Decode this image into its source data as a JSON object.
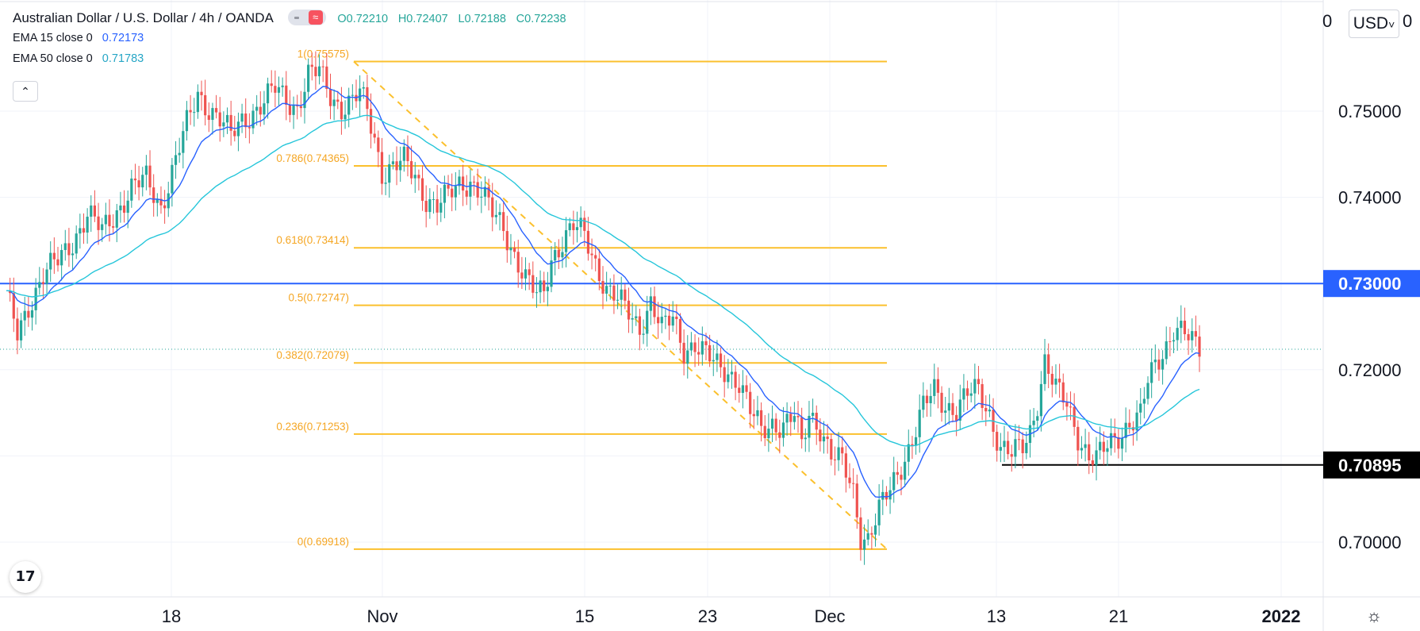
{
  "header": {
    "symbol": "Australian Dollar / U.S. Dollar",
    "interval": "4h",
    "exchange": "OANDA",
    "open": "O0.72210",
    "high": "H0.72407",
    "low": "L0.72188",
    "close": "C0.72238",
    "ema1_label": "EMA 15 close 0",
    "ema1_value": "0.72173",
    "ema2_label": "EMA 50 close 0",
    "ema2_value": "0.71783",
    "collapse_icon": "chevron-up-icon",
    "separator": "·"
  },
  "currency_selector": "USD",
  "colors": {
    "up": "#26a69a",
    "down": "#ef5350",
    "ema15": "#2962ff",
    "ema50": "#26c6da",
    "fib": "#fbc02d",
    "level_line": "#2962ff",
    "axis_text": "#131722"
  },
  "chart_data": {
    "type": "candlestick",
    "y_axis_ticks": [
      "0.75000",
      "0.74000",
      "0.72000",
      "0.70000"
    ],
    "ylim": [
      0.6935,
      0.7634
    ],
    "x_axis_ticks": [
      "18",
      "Nov",
      "15",
      "23",
      "Dec",
      "13",
      "21",
      "2022"
    ],
    "price_labels": [
      {
        "text": "0.73000",
        "value": 0.73,
        "style": "blue"
      },
      {
        "text": "0.70895",
        "value": 0.70895,
        "style": "black"
      }
    ],
    "horizontal_lines": [
      {
        "value": 0.73,
        "color": "#2962ff",
        "span": "full"
      },
      {
        "value": 0.70895,
        "color": "#000000",
        "span": "right"
      }
    ],
    "current_price": 0.72238,
    "fibonacci": [
      {
        "label": "1(0.75575)",
        "value": 0.75575
      },
      {
        "label": "0.786(0.74365)",
        "value": 0.74365
      },
      {
        "label": "0.618(0.73414)",
        "value": 0.73414
      },
      {
        "label": "0.5(0.72747)",
        "value": 0.72747
      },
      {
        "label": "0.382(0.72079)",
        "value": 0.72079
      },
      {
        "label": "0.236(0.71253)",
        "value": 0.71253
      },
      {
        "label": "0(0.69918)",
        "value": 0.69918
      }
    ],
    "series_points": {
      "close_path": [
        [
          0,
          0.7285
        ],
        [
          3,
          0.724
        ],
        [
          6,
          0.7275
        ],
        [
          10,
          0.731
        ],
        [
          14,
          0.7325
        ],
        [
          18,
          0.735
        ],
        [
          22,
          0.738
        ],
        [
          26,
          0.736
        ],
        [
          30,
          0.7385
        ],
        [
          34,
          0.741
        ],
        [
          38,
          0.742
        ],
        [
          42,
          0.739
        ],
        [
          45,
          0.743
        ],
        [
          48,
          0.747
        ],
        [
          52,
          0.752
        ],
        [
          55,
          0.7505
        ],
        [
          58,
          0.749
        ],
        [
          61,
          0.747
        ],
        [
          64,
          0.749
        ],
        [
          67,
          0.75
        ],
        [
          70,
          0.751
        ],
        [
          73,
          0.7525
        ],
        [
          76,
          0.7515
        ],
        [
          79,
          0.7505
        ],
        [
          82,
          0.754
        ],
        [
          85,
          0.7545
        ],
        [
          88,
          0.752
        ],
        [
          91,
          0.7505
        ],
        [
          94,
          0.751
        ],
        [
          96,
          0.752
        ],
        [
          98,
          0.75
        ],
        [
          100,
          0.747
        ],
        [
          102,
          0.743
        ],
        [
          105,
          0.7435
        ],
        [
          108,
          0.744
        ],
        [
          111,
          0.7425
        ],
        [
          114,
          0.74
        ],
        [
          117,
          0.739
        ],
        [
          120,
          0.74
        ],
        [
          123,
          0.7415
        ],
        [
          126,
          0.742
        ],
        [
          129,
          0.7405
        ],
        [
          132,
          0.738
        ],
        [
          135,
          0.7365
        ],
        [
          138,
          0.7335
        ],
        [
          141,
          0.7305
        ],
        [
          144,
          0.7285
        ],
        [
          146,
          0.729
        ],
        [
          148,
          0.733
        ],
        [
          151,
          0.735
        ],
        [
          154,
          0.7365
        ],
        [
          157,
          0.7355
        ],
        [
          160,
          0.7325
        ],
        [
          163,
          0.7295
        ],
        [
          166,
          0.728
        ],
        [
          169,
          0.7265
        ],
        [
          172,
          0.725
        ],
        [
          175,
          0.728
        ],
        [
          178,
          0.7245
        ],
        [
          181,
          0.726
        ],
        [
          184,
          0.7225
        ],
        [
          187,
          0.723
        ],
        [
          190,
          0.7215
        ],
        [
          193,
          0.7205
        ],
        [
          196,
          0.72
        ],
        [
          199,
          0.7185
        ],
        [
          202,
          0.715
        ],
        [
          205,
          0.713
        ],
        [
          208,
          0.714
        ],
        [
          211,
          0.7135
        ],
        [
          214,
          0.7145
        ],
        [
          216,
          0.711
        ],
        [
          218,
          0.715
        ],
        [
          221,
          0.7135
        ],
        [
          224,
          0.71
        ],
        [
          227,
          0.709
        ],
        [
          230,
          0.706
        ],
        [
          232,
          0.701
        ],
        [
          234,
          0.7005
        ],
        [
          237,
          0.7035
        ],
        [
          240,
          0.706
        ],
        [
          243,
          0.709
        ],
        [
          246,
          0.712
        ],
        [
          249,
          0.7155
        ],
        [
          252,
          0.7175
        ],
        [
          255,
          0.716
        ],
        [
          258,
          0.7155
        ],
        [
          261,
          0.717
        ],
        [
          264,
          0.7175
        ],
        [
          267,
          0.715
        ],
        [
          270,
          0.711
        ],
        [
          273,
          0.71
        ],
        [
          276,
          0.711
        ],
        [
          278,
          0.713
        ],
        [
          280,
          0.7165
        ],
        [
          282,
          0.721
        ],
        [
          285,
          0.7175
        ],
        [
          288,
          0.716
        ],
        [
          291,
          0.7125
        ],
        [
          294,
          0.71
        ],
        [
          296,
          0.7095
        ],
        [
          299,
          0.711
        ],
        [
          302,
          0.7125
        ],
        [
          305,
          0.714
        ],
        [
          308,
          0.7145
        ],
        [
          310,
          0.7185
        ],
        [
          312,
          0.7205
        ],
        [
          315,
          0.723
        ],
        [
          317,
          0.725
        ],
        [
          320,
          0.724
        ],
        [
          322,
          0.723
        ],
        [
          324,
          0.7224
        ]
      ]
    }
  }
}
